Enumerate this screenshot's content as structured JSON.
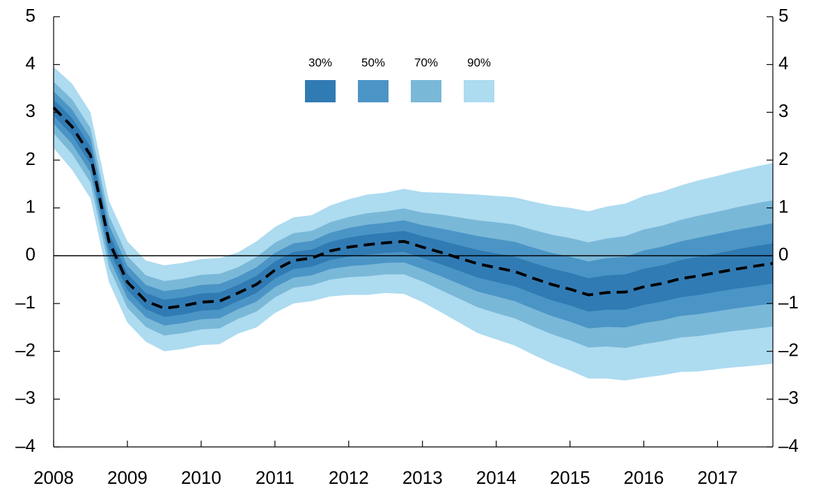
{
  "chart_data": {
    "type": "fan",
    "x": [
      2008,
      2008.25,
      2008.5,
      2008.75,
      2009,
      2009.25,
      2009.5,
      2009.75,
      2010,
      2010.25,
      2010.5,
      2010.75,
      2011,
      2011.25,
      2011.5,
      2011.75,
      2012,
      2012.25,
      2012.5,
      2012.75,
      2013,
      2013.25,
      2013.5,
      2013.75,
      2014,
      2014.25,
      2014.5,
      2014.75,
      2015,
      2015.25,
      2015.5,
      2015.75,
      2016,
      2016.25,
      2016.5,
      2016.75,
      2017,
      2017.25,
      2017.5,
      2017.75
    ],
    "xlim": [
      2008,
      2017.75
    ],
    "xticks": [
      2008,
      2009,
      2010,
      2011,
      2012,
      2013,
      2014,
      2015,
      2016,
      2017
    ],
    "ylim": [
      -4,
      5
    ],
    "yticks": [
      {
        "value": -4,
        "label": "–4"
      },
      {
        "value": -3,
        "label": "–3"
      },
      {
        "value": -2,
        "label": "–2"
      },
      {
        "value": -1,
        "label": "–1"
      },
      0,
      1,
      2,
      3,
      4,
      5
    ],
    "line": {
      "color": "#000000",
      "values": [
        3.1,
        2.7,
        2.1,
        0.3,
        -0.55,
        -0.95,
        -1.1,
        -1.05,
        -0.97,
        -0.95,
        -0.78,
        -0.6,
        -0.3,
        -0.1,
        -0.05,
        0.1,
        0.18,
        0.23,
        0.27,
        0.3,
        0.18,
        0.07,
        -0.05,
        -0.17,
        -0.25,
        -0.33,
        -0.47,
        -0.6,
        -0.7,
        -0.82,
        -0.77,
        -0.76,
        -0.65,
        -0.58,
        -0.48,
        -0.42,
        -0.35,
        -0.28,
        -0.22,
        -0.16
      ]
    },
    "bands": [
      {
        "name": "30%",
        "color": "#317bb4",
        "upper": [
          3.27,
          2.88,
          2.28,
          0.47,
          -0.38,
          -0.78,
          -0.92,
          -0.87,
          -0.79,
          -0.77,
          -0.61,
          -0.42,
          -0.12,
          0.08,
          0.13,
          0.29,
          0.38,
          0.44,
          0.48,
          0.52,
          0.41,
          0.32,
          0.22,
          0.12,
          0.05,
          -0.02,
          -0.15,
          -0.27,
          -0.36,
          -0.47,
          -0.41,
          -0.39,
          -0.27,
          -0.2,
          -0.09,
          -0.02,
          0.05,
          0.13,
          0.2,
          0.26
        ],
        "lower": [
          2.93,
          2.52,
          1.92,
          0.13,
          -0.72,
          -1.12,
          -1.28,
          -1.23,
          -1.15,
          -1.13,
          -0.95,
          -0.78,
          -0.48,
          -0.28,
          -0.23,
          -0.09,
          -0.02,
          0.02,
          0.06,
          0.08,
          -0.05,
          -0.18,
          -0.32,
          -0.46,
          -0.55,
          -0.64,
          -0.79,
          -0.93,
          -1.04,
          -1.17,
          -1.13,
          -1.13,
          -1.03,
          -0.96,
          -0.87,
          -0.82,
          -0.75,
          -0.69,
          -0.64,
          -0.58
        ]
      },
      {
        "name": "50%",
        "color": "#4b95c6",
        "upper": [
          3.44,
          3.06,
          2.46,
          0.64,
          -0.21,
          -0.61,
          -0.74,
          -0.69,
          -0.61,
          -0.59,
          -0.44,
          -0.24,
          0.06,
          0.26,
          0.31,
          0.48,
          0.58,
          0.65,
          0.69,
          0.74,
          0.64,
          0.57,
          0.49,
          0.41,
          0.35,
          0.29,
          0.17,
          0.06,
          -0.02,
          -0.12,
          -0.05,
          -0.02,
          0.11,
          0.19,
          0.3,
          0.38,
          0.46,
          0.54,
          0.61,
          0.68
        ],
        "lower": [
          2.76,
          2.34,
          1.74,
          -0.04,
          -0.89,
          -1.29,
          -1.46,
          -1.41,
          -1.33,
          -1.31,
          -1.12,
          -0.96,
          -0.66,
          -0.46,
          -0.41,
          -0.28,
          -0.22,
          -0.19,
          -0.15,
          -0.14,
          -0.28,
          -0.43,
          -0.59,
          -0.75,
          -0.85,
          -0.95,
          -1.11,
          -1.26,
          -1.38,
          -1.52,
          -1.49,
          -1.5,
          -1.41,
          -1.35,
          -1.26,
          -1.22,
          -1.16,
          -1.1,
          -1.05,
          -1.0
        ]
      },
      {
        "name": "70%",
        "color": "#7ab8d8",
        "upper": [
          3.64,
          3.27,
          2.67,
          0.84,
          -0.01,
          -0.41,
          -0.53,
          -0.48,
          -0.4,
          -0.38,
          -0.24,
          -0.03,
          0.27,
          0.47,
          0.52,
          0.7,
          0.81,
          0.89,
          0.93,
          0.99,
          0.9,
          0.86,
          0.8,
          0.74,
          0.7,
          0.65,
          0.54,
          0.44,
          0.37,
          0.28,
          0.36,
          0.41,
          0.55,
          0.63,
          0.75,
          0.84,
          0.92,
          1.01,
          1.09,
          1.16
        ],
        "lower": [
          2.56,
          2.13,
          1.53,
          -0.24,
          -1.09,
          -1.49,
          -1.67,
          -1.62,
          -1.54,
          -1.52,
          -1.32,
          -1.17,
          -0.87,
          -0.67,
          -0.62,
          -0.5,
          -0.45,
          -0.43,
          -0.39,
          -0.39,
          -0.54,
          -0.72,
          -0.9,
          -1.08,
          -1.2,
          -1.31,
          -1.48,
          -1.64,
          -1.77,
          -1.92,
          -1.9,
          -1.93,
          -1.85,
          -1.79,
          -1.71,
          -1.68,
          -1.62,
          -1.57,
          -1.53,
          -1.48
        ]
      },
      {
        "name": "90%",
        "color": "#addbf0",
        "upper": [
          3.95,
          3.6,
          3.0,
          1.15,
          0.3,
          -0.1,
          -0.2,
          -0.15,
          -0.07,
          -0.05,
          0.07,
          0.3,
          0.6,
          0.8,
          0.85,
          1.05,
          1.18,
          1.28,
          1.32,
          1.4,
          1.33,
          1.32,
          1.3,
          1.28,
          1.25,
          1.22,
          1.13,
          1.05,
          1.0,
          0.93,
          1.03,
          1.09,
          1.25,
          1.34,
          1.47,
          1.58,
          1.67,
          1.77,
          1.86,
          1.94
        ],
        "lower": [
          2.25,
          1.8,
          1.2,
          -0.55,
          -1.4,
          -1.8,
          -2.0,
          -1.95,
          -1.87,
          -1.85,
          -1.63,
          -1.5,
          -1.2,
          -1.0,
          -0.95,
          -0.85,
          -0.82,
          -0.82,
          -0.78,
          -0.8,
          -0.97,
          -1.18,
          -1.4,
          -1.62,
          -1.75,
          -1.88,
          -2.07,
          -2.25,
          -2.4,
          -2.57,
          -2.57,
          -2.61,
          -2.55,
          -2.5,
          -2.43,
          -2.42,
          -2.37,
          -2.33,
          -2.3,
          -2.26
        ]
      }
    ]
  }
}
